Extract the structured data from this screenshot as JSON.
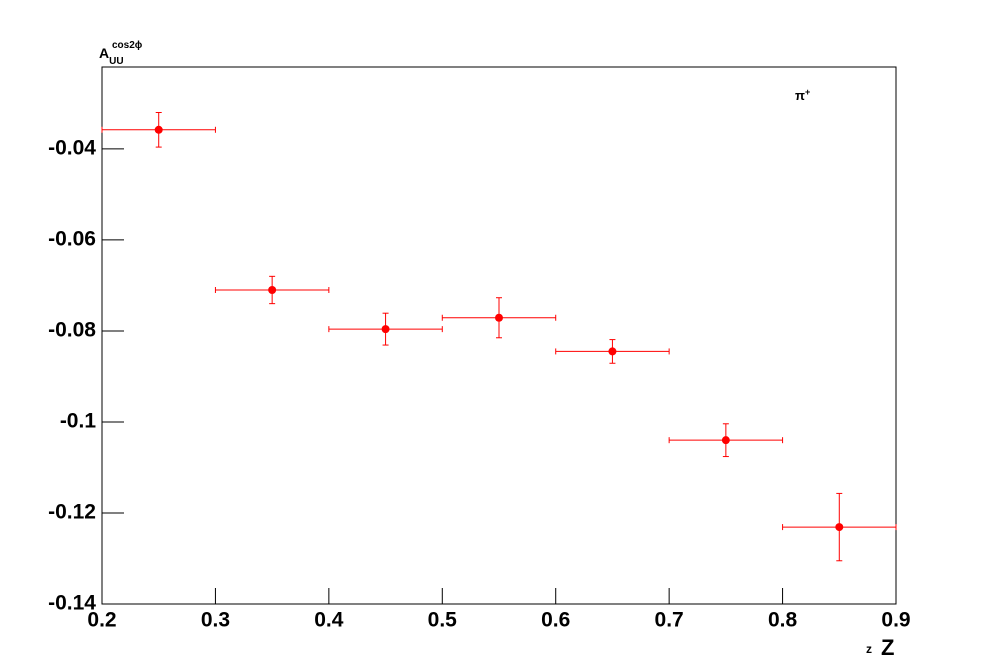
{
  "chart_data": {
    "type": "scatter",
    "y_label": {
      "base": "A",
      "sub": "UU",
      "sup": "cos2ϕ"
    },
    "annotation": {
      "base": "π",
      "sup": "+"
    },
    "x_label": {
      "small": "z",
      "big": "Z"
    },
    "x": [
      0.25,
      0.35,
      0.45,
      0.55,
      0.65,
      0.75,
      0.85
    ],
    "xerr": [
      0.05,
      0.05,
      0.05,
      0.05,
      0.05,
      0.05,
      0.05
    ],
    "values": [
      -0.0358,
      -0.071,
      -0.0796,
      -0.0771,
      -0.0845,
      -0.104,
      -0.1231
    ],
    "errors": [
      0.0038,
      0.003,
      0.0035,
      0.0044,
      0.0026,
      0.0036,
      0.0074
    ],
    "color": "#ff0000",
    "xlim": [
      0.2,
      0.9
    ],
    "xticks": [
      0.2,
      0.3,
      0.4,
      0.5,
      0.6,
      0.7,
      0.8,
      0.9
    ],
    "ylim": [
      -0.14,
      -0.022
    ],
    "yticks": [
      -0.14,
      -0.12,
      -0.1,
      -0.08,
      -0.06,
      -0.04
    ]
  }
}
